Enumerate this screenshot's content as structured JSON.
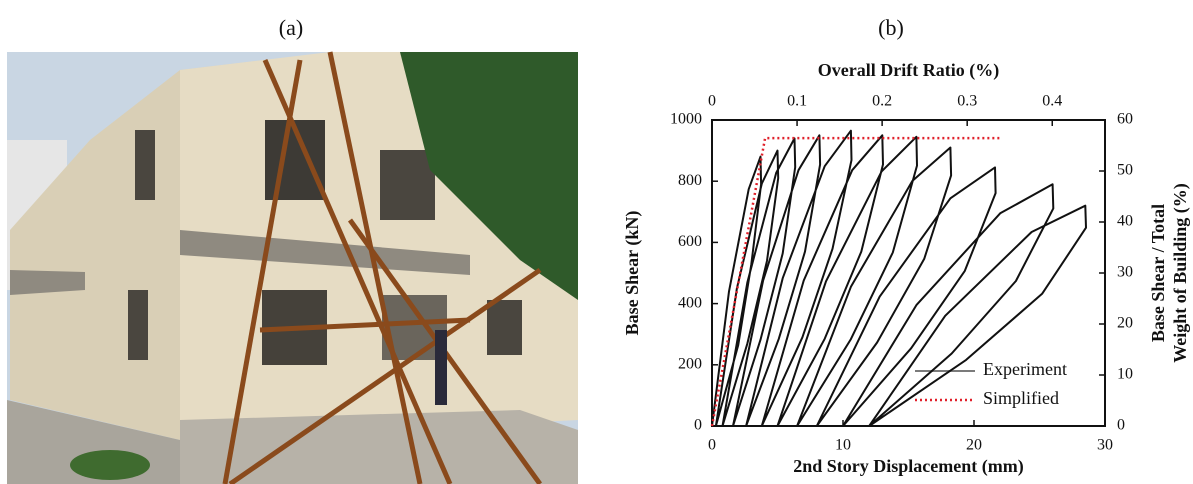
{
  "panels": [
    {
      "label": "(a)"
    },
    {
      "label": "(b)"
    }
  ],
  "chart_data": {
    "type": "line",
    "x_label": "2nd Story Displacement (mm)",
    "y_label": "Base Shear (kN)",
    "x2_label": "Overall Drift Ratio (%)",
    "y2_label": [
      "Base Shear / Total",
      "Weight of Building (%)"
    ],
    "xlim": [
      0,
      30
    ],
    "xticks": [
      0,
      10,
      20,
      30
    ],
    "ylim": [
      0,
      1000
    ],
    "yticks": [
      0,
      200,
      400,
      600,
      800,
      1000
    ],
    "x2lim": [
      0,
      0.462
    ],
    "x2ticks": [
      0,
      0.1,
      0.2,
      0.3,
      0.4
    ],
    "y2lim": [
      0,
      60
    ],
    "y2ticks": [
      0,
      10,
      20,
      30,
      40,
      50,
      60
    ],
    "legend": "lower right",
    "series": [
      {
        "name": "Experiment",
        "color": "#111111",
        "dash": "solid",
        "x": [
          0,
          1.3,
          2.8,
          3.7,
          3.75,
          3.0,
          2.0,
          0.3,
          1.9,
          3.8,
          5.0,
          5.05,
          4.2,
          2.7,
          0.8,
          2.7,
          4.9,
          6.3,
          6.35,
          5.4,
          3.7,
          1.6,
          3.9,
          6.6,
          8.2,
          8.25,
          7.1,
          5.1,
          2.6,
          5.4,
          8.6,
          10.6,
          10.65,
          9.2,
          6.9,
          3.8,
          7.0,
          10.7,
          13,
          13.05,
          11.4,
          8.6,
          5,
          8.7,
          12.95,
          15.6,
          15.65,
          13.8,
          10.6,
          6.5,
          10.6,
          15.3,
          18.2,
          18.25,
          16.2,
          12.6,
          8,
          12.8,
          18.2,
          21.6,
          21.65,
          19.3,
          15.2,
          10,
          15.6,
          22,
          26,
          26.05,
          23.2,
          18.3,
          12,
          17.8,
          24.4,
          28.5,
          28.55,
          25.2,
          19.4,
          12
        ],
        "values": [
          0,
          440,
          774,
          880,
          790,
          528,
          264,
          0,
          450,
          792,
          900,
          810,
          540,
          270,
          0,
          470,
          827,
          940,
          846,
          564,
          282,
          0,
          475,
          836,
          950,
          855,
          570,
          285,
          0,
          483,
          849,
          965,
          869,
          579,
          290,
          0,
          475,
          836,
          950,
          855,
          570,
          285,
          0,
          473,
          832,
          945,
          851,
          567,
          284,
          0,
          455,
          801,
          910,
          819,
          546,
          273,
          0,
          423,
          744,
          845,
          761,
          507,
          254,
          0,
          395,
          695,
          790,
          711,
          474,
          237,
          0,
          360,
          634,
          720,
          648,
          432,
          216,
          0
        ]
      },
      {
        "name": "Simplified",
        "color": "#e0202a",
        "dash": "dotted",
        "x": [
          0,
          4.05,
          22
        ],
        "values": [
          0,
          941,
          941
        ]
      }
    ]
  }
}
